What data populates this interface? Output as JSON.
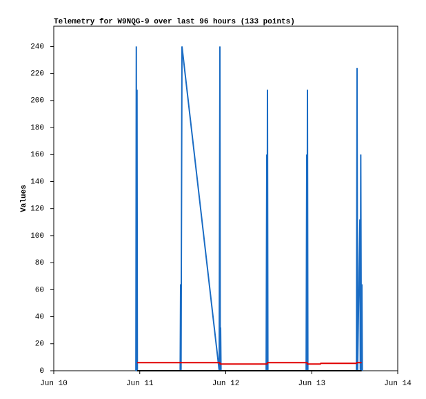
{
  "chart_data": {
    "type": "line",
    "title": "Telemetry for W9NQG-9 over last 96 hours (133 points)",
    "y_label": "Values",
    "xlim": [
      0,
      4
    ],
    "xticks": [
      {
        "value": 0,
        "label": "Jun 10"
      },
      {
        "value": 1,
        "label": "Jun 11"
      },
      {
        "value": 2,
        "label": "Jun 12"
      },
      {
        "value": 3,
        "label": "Jun 13"
      },
      {
        "value": 4,
        "label": "Jun 14"
      }
    ],
    "ylim": [
      0,
      255
    ],
    "yticks": [
      0,
      20,
      40,
      60,
      80,
      100,
      120,
      140,
      160,
      180,
      200,
      220,
      240
    ],
    "series": [
      {
        "color": "#1a6cc4",
        "x": [
          0.955,
          0.96,
          0.963,
          0.968,
          0.972,
          1.47,
          1.475,
          1.48,
          1.491,
          1.924,
          1.932,
          1.936,
          1.94,
          1.945,
          2.47,
          2.477,
          2.481,
          2.485,
          2.49,
          2.935,
          2.942,
          2.946,
          2.95,
          2.955,
          3.52,
          3.527,
          3.533,
          3.56,
          3.565,
          3.57,
          3.577,
          3.583,
          3.588
        ],
        "values": [
          0,
          240,
          0,
          208,
          0,
          0,
          64,
          0,
          240,
          0,
          240,
          0,
          32,
          0,
          0,
          160,
          0,
          208,
          0,
          0,
          160,
          0,
          208,
          0,
          0,
          224,
          0,
          112,
          0,
          160,
          0,
          64,
          0
        ]
      },
      {
        "color": "#e00000",
        "x": [
          0.97,
          1.93,
          1.935,
          2.48,
          2.485,
          2.945,
          2.95,
          3.1,
          3.105,
          3.52,
          3.525,
          3.58
        ],
        "values": [
          6,
          6,
          5,
          5,
          6,
          6,
          5,
          5,
          5.5,
          5.5,
          6,
          6
        ]
      },
      {
        "color": "#000000",
        "x": [
          0.97,
          3.58
        ],
        "values": [
          0,
          0
        ]
      }
    ]
  }
}
